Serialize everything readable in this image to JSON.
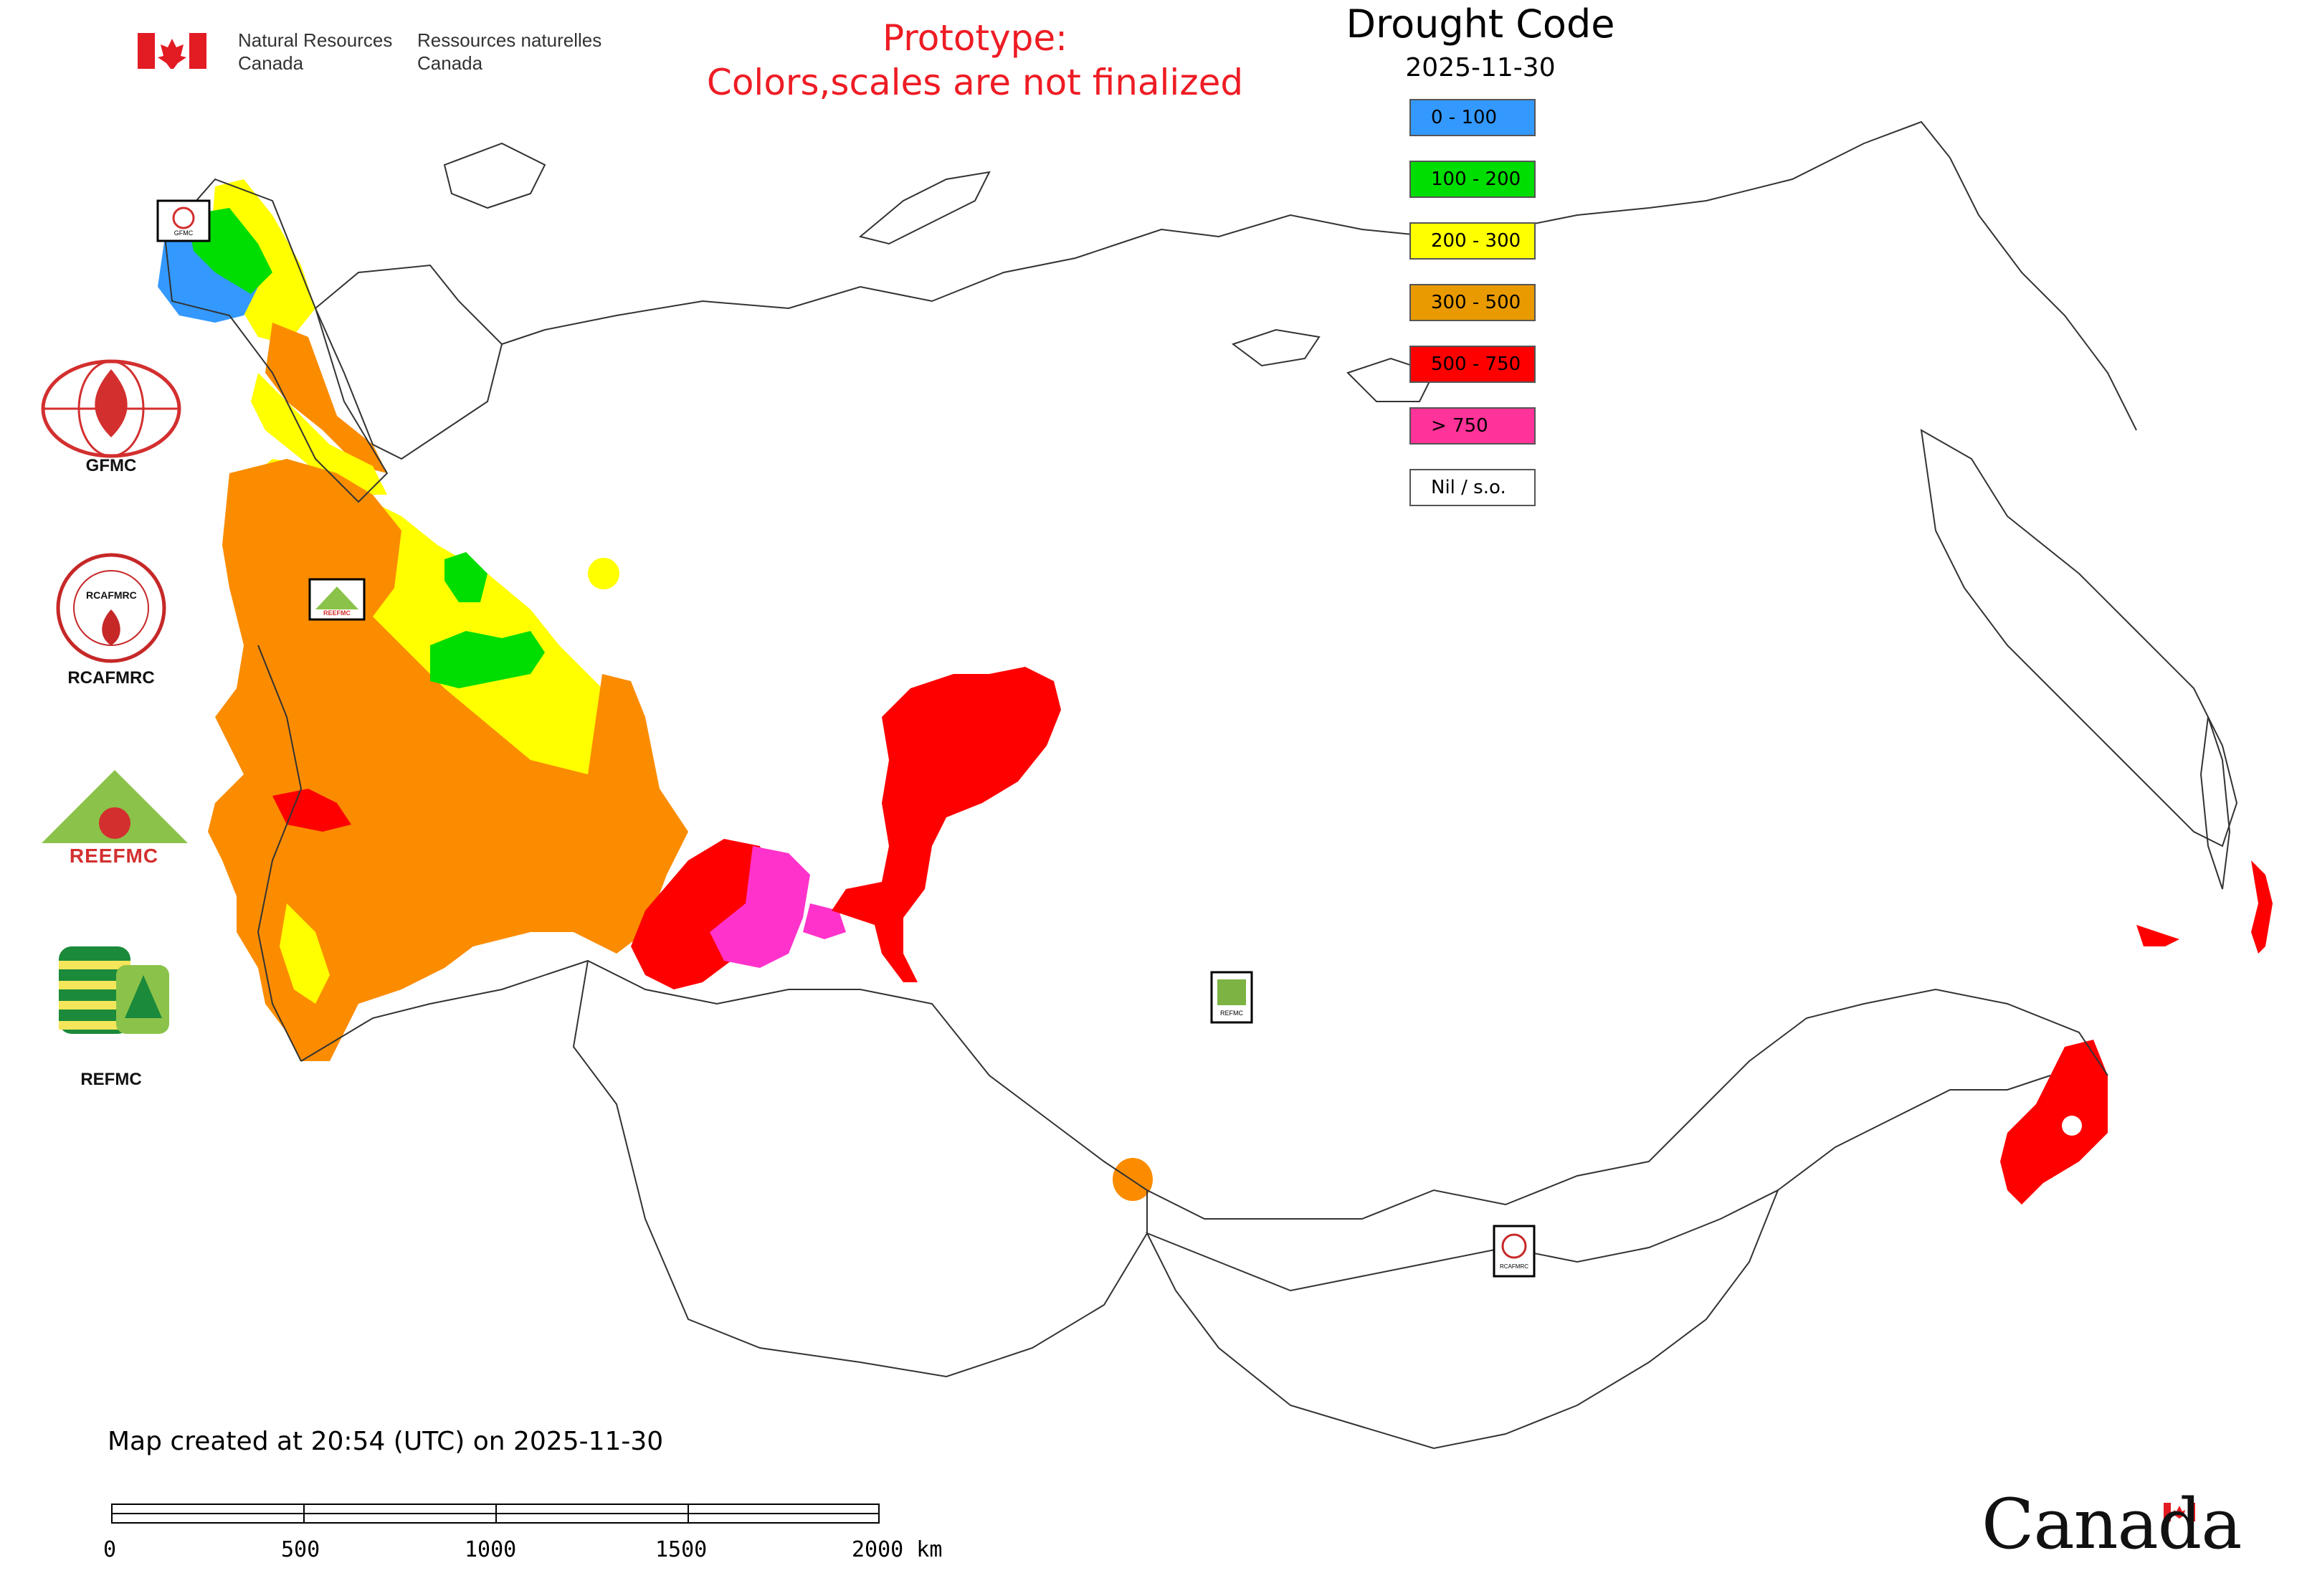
{
  "header": {
    "nrcan_en_line1": "Natural Resources",
    "nrcan_en_line2": "Canada",
    "nrcan_fr_line1": "Ressources naturelles",
    "nrcan_fr_line2": "Canada",
    "prototype_line1": "Prototype:",
    "prototype_line2": "Colors,scales are not finalized"
  },
  "legend": {
    "title": "Drought Code",
    "date": "2025-11-30",
    "items": [
      {
        "label": "0 - 100",
        "color": "#3399ff"
      },
      {
        "label": "100 - 200",
        "color": "#00dd00"
      },
      {
        "label": "200 - 300",
        "color": "#ffff00"
      },
      {
        "label": "300 - 500",
        "color": "#e89a00"
      },
      {
        "label": "500 - 750",
        "color": "#ff0000"
      },
      {
        "label": "> 750",
        "color": "#ff3399"
      },
      {
        "label": "Nil / s.o.",
        "color": "#ffffff"
      }
    ]
  },
  "orgs": {
    "gfmc": "GFMC",
    "rcafmrc": "RCAFMRC",
    "reefmc": "REEFMC",
    "refmc": "REFMC",
    "rcafmrc_logo_text": "RCAFMRC",
    "reefmc_logo_text": "REEFMC"
  },
  "map_markers": {
    "gfmc_small": "GFMC",
    "reefmc_small": "REEFMC",
    "refmc_small": "REFMC",
    "rcafmrc_small": "RCAFMRC"
  },
  "footer": {
    "created": "Map created at 20:54 (UTC) on 2025-11-30",
    "scale_labels": [
      "0",
      "500",
      "1000",
      "1500",
      "2000 km"
    ],
    "wordmark": "Canada"
  },
  "palette": {
    "blue": "#3399ff",
    "green": "#00dd00",
    "yellow": "#ffff00",
    "orange": "#fb8c00",
    "red": "#ff0000",
    "magenta": "#ff33cc",
    "canada_red": "#e31b23"
  }
}
